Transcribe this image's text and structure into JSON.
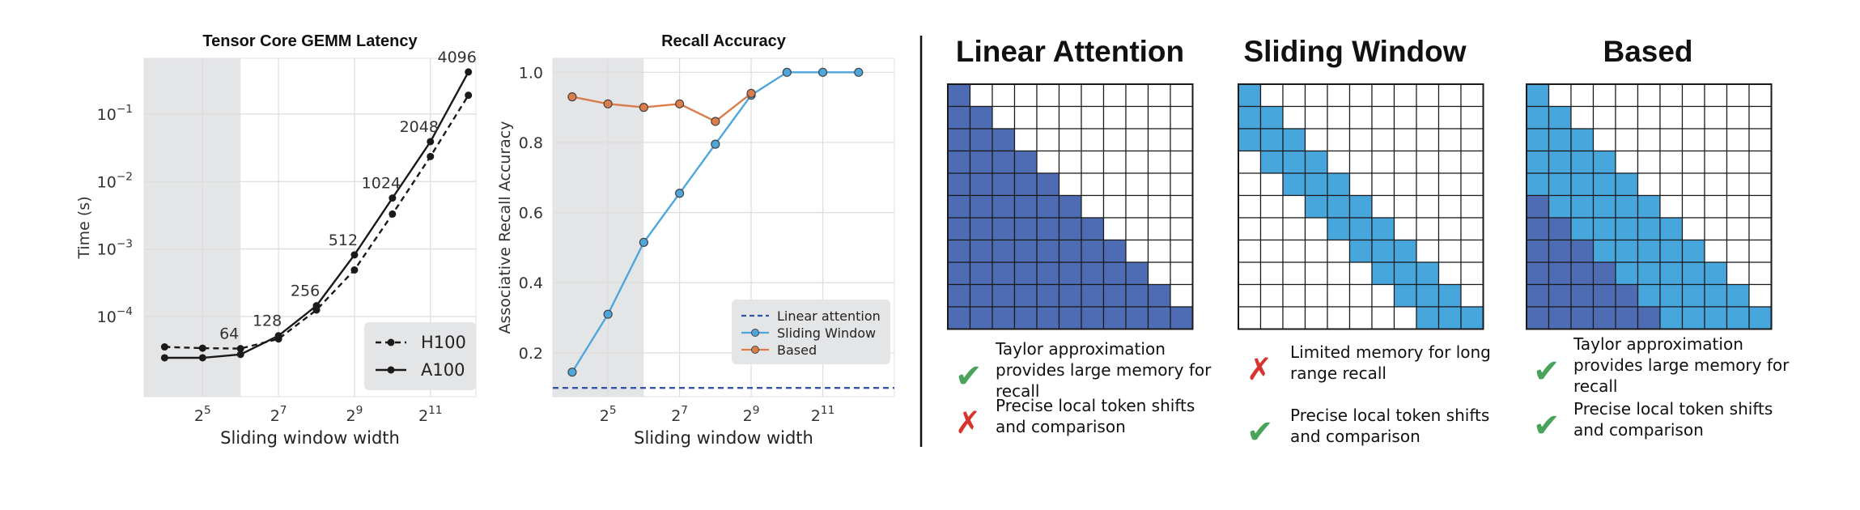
{
  "chart_data": [
    {
      "type": "line",
      "title": "Tensor Core GEMM Latency",
      "xlabel": "Sliding window width",
      "ylabel": "Time (s)",
      "x_scale": "log2",
      "y_scale": "log10",
      "xlim": [
        11,
        4700
      ],
      "ylim": [
        6.5e-06,
        0.67
      ],
      "x_ticks": [
        {
          "value": 32,
          "base": "2",
          "exp": "5"
        },
        {
          "value": 128,
          "base": "2",
          "exp": "7"
        },
        {
          "value": 512,
          "base": "2",
          "exp": "9"
        },
        {
          "value": 2048,
          "base": "2",
          "exp": "11"
        }
      ],
      "y_ticks": [
        {
          "value": 0.0001,
          "base": "10",
          "exp": "−4"
        },
        {
          "value": 0.001,
          "base": "10",
          "exp": "−3"
        },
        {
          "value": 0.01,
          "base": "10",
          "exp": "−2"
        },
        {
          "value": 0.1,
          "base": "10",
          "exp": "−1"
        }
      ],
      "shaded_region": [
        11,
        64
      ],
      "grid": true,
      "legend_position": "bottom-right",
      "series": [
        {
          "name": "H100",
          "style": "dashed",
          "color": "#1a1a1a",
          "x": [
            16,
            32,
            64,
            128,
            256,
            512,
            1024,
            2048,
            4096
          ],
          "y": [
            3.55e-05,
            3.4e-05,
            3.35e-05,
            4.65e-05,
            0.000125,
            0.00049,
            0.0033,
            0.0235,
            0.19
          ]
        },
        {
          "name": "A100",
          "style": "solid",
          "color": "#1a1a1a",
          "x": [
            16,
            32,
            64,
            128,
            256,
            512,
            1024,
            2048,
            4096
          ],
          "y": [
            2.45e-05,
            2.45e-05,
            2.75e-05,
            5.2e-05,
            0.000145,
            0.00082,
            0.0057,
            0.039,
            0.42
          ]
        }
      ],
      "annotations": [
        {
          "text": "64",
          "x": 64,
          "y": 3.35e-05
        },
        {
          "text": "128",
          "x": 128,
          "y": 5.2e-05
        },
        {
          "text": "256",
          "x": 256,
          "y": 0.000145
        },
        {
          "text": "512",
          "x": 512,
          "y": 0.00082
        },
        {
          "text": "1024",
          "x": 1024,
          "y": 0.0057
        },
        {
          "text": "2048",
          "x": 2048,
          "y": 0.039
        },
        {
          "text": "4096",
          "x": 4096,
          "y": 0.42
        }
      ]
    },
    {
      "type": "line",
      "title": "Recall Accuracy",
      "xlabel": "Sliding window width",
      "ylabel": "Associative Recall Accuracy",
      "x_scale": "log2",
      "xlim": [
        11,
        8192
      ],
      "ylim": [
        0.075,
        1.04
      ],
      "x_ticks": [
        {
          "value": 32,
          "base": "2",
          "exp": "5"
        },
        {
          "value": 128,
          "base": "2",
          "exp": "7"
        },
        {
          "value": 512,
          "base": "2",
          "exp": "9"
        },
        {
          "value": 2048,
          "base": "2",
          "exp": "11"
        }
      ],
      "y_ticks": [
        0.2,
        0.4,
        0.6,
        0.8,
        1.0
      ],
      "y_tick_labels": [
        "0.2",
        "0.4",
        "0.6",
        "0.8",
        "1.0"
      ],
      "shaded_region": [
        11,
        64
      ],
      "grid": true,
      "legend_position": "bottom-right",
      "series": [
        {
          "name": "Linear attention",
          "style": "dashed-hline",
          "color": "#3355a8",
          "y": 0.1
        },
        {
          "name": "Sliding Window",
          "style": "solid-marker",
          "color": "#4ea6dc",
          "x": [
            16,
            32,
            64,
            128,
            256,
            512,
            1024,
            2048,
            4096
          ],
          "y": [
            0.145,
            0.31,
            0.515,
            0.655,
            0.795,
            0.935,
            1.0,
            1.0,
            1.0
          ]
        },
        {
          "name": "Based",
          "style": "solid-marker",
          "color": "#db7d4a",
          "x": [
            16,
            32,
            64,
            128,
            256,
            512
          ],
          "y": [
            0.93,
            0.91,
            0.9,
            0.91,
            0.86,
            0.94
          ]
        }
      ]
    }
  ],
  "panels": [
    {
      "title": "Linear Attention",
      "pattern": "linear",
      "grid_size": 11,
      "items": [
        {
          "mark": "check",
          "text_lines": [
            "Taylor approximation",
            "provides large memory for",
            "recall"
          ]
        },
        {
          "mark": "cross",
          "text_lines": [
            "Precise local token shifts",
            "and comparison"
          ]
        }
      ]
    },
    {
      "title": "Sliding Window",
      "pattern": "sliding",
      "grid_size": 11,
      "items": [
        {
          "mark": "cross",
          "text_lines": [
            "Limited memory for long",
            "range recall"
          ]
        },
        {
          "mark": "check",
          "text_lines": [
            "Precise local token shifts",
            "and comparison"
          ]
        }
      ]
    },
    {
      "title": "Based",
      "pattern": "based",
      "grid_size": 11,
      "items": [
        {
          "mark": "check",
          "text_lines": [
            "Taylor approximation",
            "provides large memory for",
            "recall"
          ]
        },
        {
          "mark": "check",
          "text_lines": [
            "Precise local token shifts",
            "and comparison"
          ]
        }
      ]
    }
  ],
  "colors": {
    "dark_blue": "#4d6cb3",
    "light_blue": "#47a7dd",
    "check_green": "#4aa35a",
    "cross_red": "#d8342e",
    "shade": "#e4e5e7",
    "legend_bg": "#e4e5e7"
  },
  "marks": {
    "check": "✔",
    "cross": "✗"
  }
}
